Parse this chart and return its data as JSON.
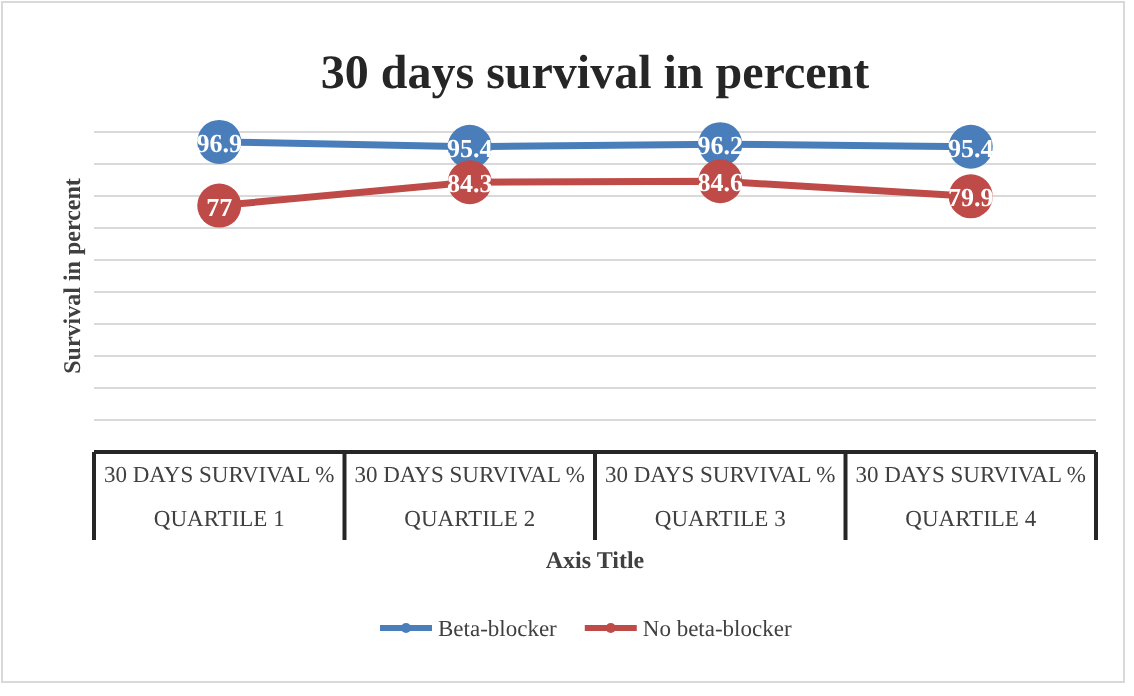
{
  "chart_data": {
    "type": "line",
    "title": "30 days survival in percent",
    "xlabel": "Axis Title",
    "ylabel": "Survival in percent",
    "categories": [
      "30 DAYS SURVIVAL  %\nQUARTILE 1",
      "30 DAYS SURVIVAL  %\nQUARTILE 2",
      "30 DAYS SURVIVAL  %\nQUARTILE 3",
      "30 DAYS SURVIVAL  %\nQUARTILE 4"
    ],
    "series": [
      {
        "name": "Beta-blocker",
        "color": "#4a7ebb",
        "values": [
          96.9,
          95.4,
          96.2,
          95.4
        ]
      },
      {
        "name": "No beta-blocker",
        "color": "#be4b48",
        "values": [
          77,
          84.3,
          84.6,
          79.9
        ]
      }
    ],
    "ylim": [
      10,
      100
    ],
    "yticks": [
      10,
      20,
      30,
      40,
      50,
      60,
      70,
      80,
      90,
      100
    ],
    "tick_labels": "x",
    "grid": "y",
    "legend": "bottom",
    "marker": "circle",
    "line_style": "solid",
    "data_labels": true
  }
}
